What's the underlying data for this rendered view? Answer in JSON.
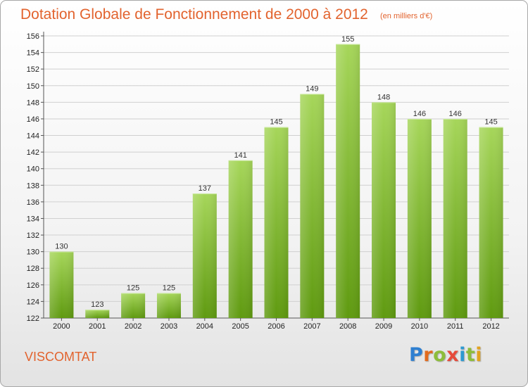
{
  "header": {
    "title": "Dotation Globale de Fonctionnement de 2000 à 2012",
    "unit": "(en milliers d'€)"
  },
  "footer": {
    "commune": "VISCOMTAT",
    "logo": "Proxiti"
  },
  "colors": {
    "title": "#e2632e",
    "bar_top": "#a6d65a",
    "bar_bottom": "#5f9a10",
    "logo": [
      "#2e7fd1",
      "#e26b1e",
      "#8dbd3a",
      "#e64a3b",
      "#2e9ad1",
      "#8dbd3a",
      "#e2a21e"
    ]
  },
  "chart_data": {
    "type": "bar",
    "title": "Dotation Globale de Fonctionnement de 2000 à 2012",
    "subtitle": "(en milliers d'€)",
    "categories": [
      "2000",
      "2001",
      "2002",
      "2003",
      "2004",
      "2005",
      "2006",
      "2007",
      "2008",
      "2009",
      "2010",
      "2011",
      "2012"
    ],
    "values": [
      130,
      123,
      125,
      125,
      137,
      141,
      145,
      149,
      155,
      148,
      146,
      146,
      145
    ],
    "ylim": [
      122,
      156
    ],
    "yticks": [
      122,
      124,
      126,
      128,
      130,
      132,
      134,
      136,
      138,
      140,
      142,
      144,
      146,
      148,
      150,
      152,
      154,
      156
    ],
    "grid": true,
    "legend": "none"
  }
}
